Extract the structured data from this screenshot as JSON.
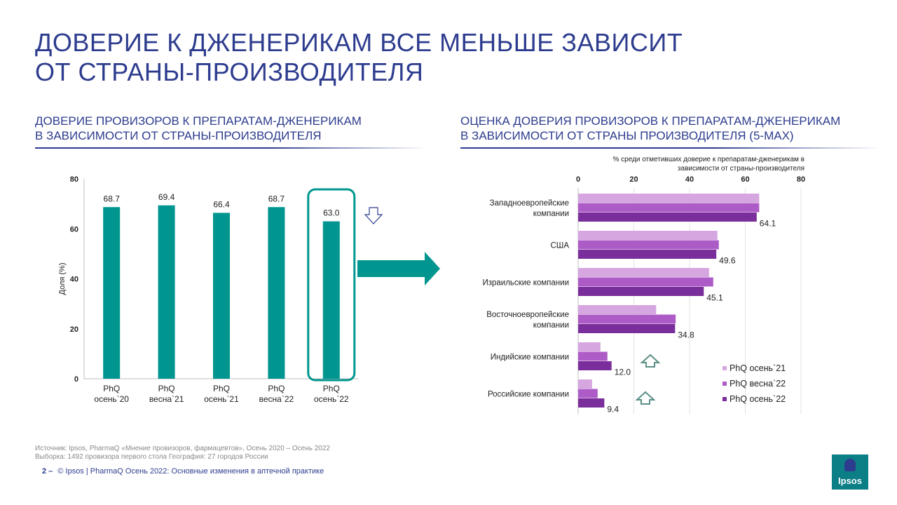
{
  "title_lines": [
    "ДОВЕРИЕ К ДЖЕНЕРИКАМ ВСЕ МЕНЬШЕ ЗАВИСИТ",
    "ОТ СТРАНЫ-ПРОИЗВОДИТЕЛЯ"
  ],
  "left_subtitle": [
    "ДОВЕРИЕ ПРОВИЗОРОВ К ПРЕПАРАТАМ-ДЖЕНЕРИКАМ",
    "В ЗАВИСИМОСТИ ОТ СТРАНЫ-ПРОИЗВОДИТЕЛЯ"
  ],
  "right_subtitle": [
    "ОЦЕНКА ДОВЕРИЯ ПРОВИЗОРОВ К ПРЕПАРАТАМ-ДЖЕНЕРИКАМ",
    "В ЗАВИСИМОСТИ ОТ СТРАНЫ ПРОИЗВОДИТЕЛЯ (5-MAX)"
  ],
  "footer": {
    "source": "Источник: Ipsos, PharmaQ «Мнение провизоров, фармацевтов», Осень 2020 – Осень 2022",
    "sample": "Выборка: 1492 провизора первого стола  География: 27 городов России",
    "page": "2 –",
    "copyright": "© Ipsos | PharmaQ Осень 2022: Основные изменения в аптечной практике"
  },
  "logo_text": "Ipsos",
  "colors": {
    "teal": "#00968f",
    "navy": "#2d3c8e",
    "s1": "#d6a6e0",
    "s2": "#ad5bc6",
    "s3": "#7a2e9b"
  },
  "chart_data": [
    {
      "type": "bar",
      "categories": [
        [
          "PhQ",
          "осень`20"
        ],
        [
          "PhQ",
          "весна`21"
        ],
        [
          "PhQ",
          "осень`21"
        ],
        [
          "PhQ",
          "весна`22"
        ],
        [
          "PhQ",
          "осень`22"
        ]
      ],
      "values": [
        68.7,
        69.4,
        66.4,
        68.7,
        63.0
      ],
      "value_labels": [
        "68.7",
        "69.4",
        "66.4",
        "68.7",
        "63.0"
      ],
      "ylabel": "Доля (%)",
      "ylim": [
        0,
        80
      ],
      "yticks": [
        0,
        20,
        40,
        60,
        80
      ],
      "highlighted_index": 4,
      "trend_marker": "down-arrow"
    },
    {
      "type": "bar",
      "orientation": "horizontal",
      "xlabel": [
        "% среди отметивших доверие к препаратам-дженерикам в",
        "зависимости от страны-производителя"
      ],
      "xlim": [
        0,
        80
      ],
      "xticks": [
        0,
        20,
        40,
        60,
        80
      ],
      "categories": [
        [
          "Западноевропейские",
          "компании"
        ],
        [
          "США"
        ],
        [
          "Израильские  компании"
        ],
        [
          "Восточноевропейские",
          "компании"
        ],
        [
          "Индийские  компании"
        ],
        [
          "Российские  компании"
        ]
      ],
      "series": [
        {
          "name": "PhQ осень`21",
          "values": [
            65,
            50,
            47,
            28,
            8,
            5
          ]
        },
        {
          "name": "PhQ весна`22",
          "values": [
            65,
            50.5,
            48.5,
            35,
            10.5,
            7
          ]
        },
        {
          "name": "PhQ осень`22",
          "values": [
            64.1,
            49.6,
            45.1,
            34.8,
            12.0,
            9.4
          ]
        }
      ],
      "value_labels": [
        "64.1",
        "49.6",
        "45.1",
        "34.8",
        "12.0",
        "9.4"
      ],
      "legend": "bottom-right",
      "up_arrows_on": [
        4,
        5
      ]
    }
  ]
}
